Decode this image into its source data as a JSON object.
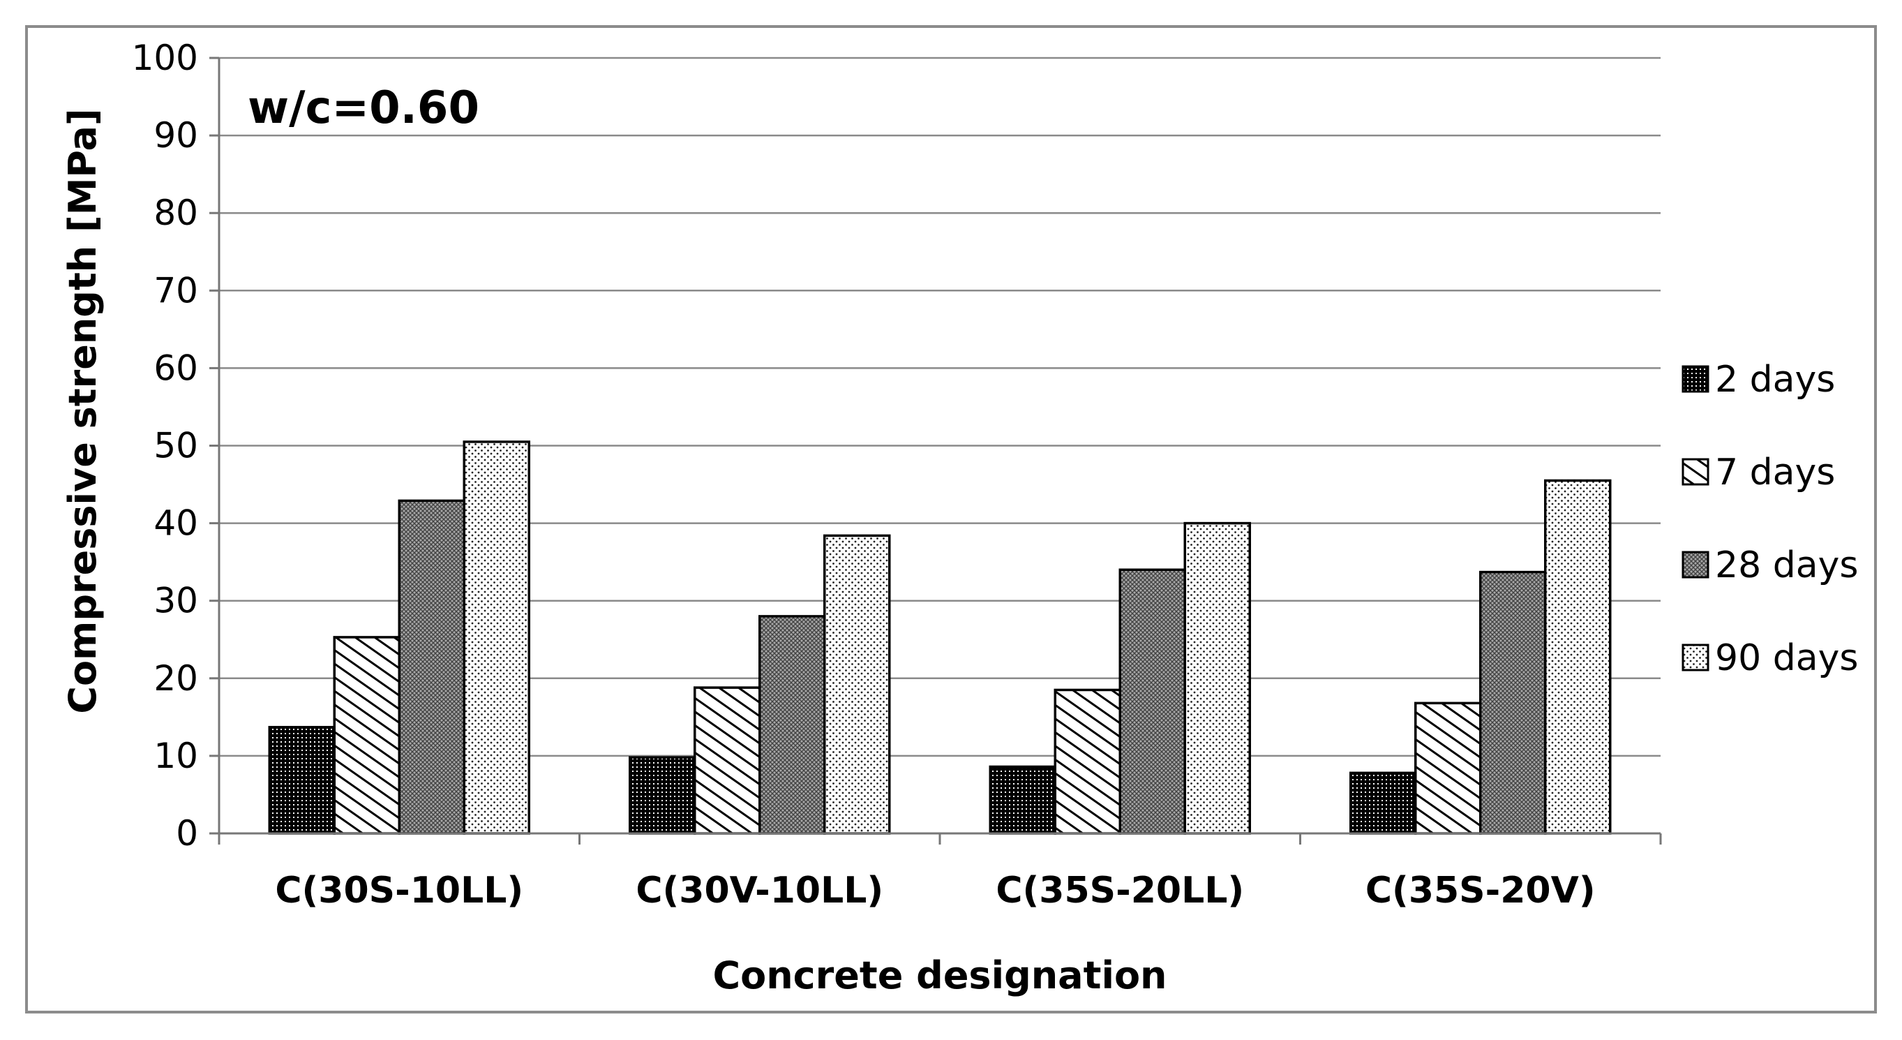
{
  "chart_data": {
    "type": "bar",
    "annotation": "w/c=0.60",
    "xlabel": "Concrete designation",
    "ylabel": "Compressive  strength [MPa]",
    "ylim": [
      0,
      100
    ],
    "yticks": [
      "0",
      "10",
      "20",
      "30",
      "40",
      "50",
      "60",
      "70",
      "80",
      "90",
      "100"
    ],
    "grid": true,
    "legend_position": "right",
    "categories": [
      "C(30S-10LL)",
      "C(30V-10LL)",
      "C(35S-20LL)",
      "C(35S-20V)"
    ],
    "series": [
      {
        "name": "2 days",
        "pattern": "dense-dots",
        "values": [
          13.7,
          9.8,
          8.6,
          7.8
        ]
      },
      {
        "name": "7 days",
        "pattern": "diagonal",
        "values": [
          25.3,
          18.8,
          18.5,
          16.8
        ]
      },
      {
        "name": "28 days",
        "pattern": "crosshatch",
        "values": [
          42.9,
          28.0,
          34.0,
          33.7
        ]
      },
      {
        "name": "90 days",
        "pattern": "sparse-dots",
        "values": [
          50.5,
          38.4,
          40.0,
          45.5
        ]
      }
    ]
  }
}
